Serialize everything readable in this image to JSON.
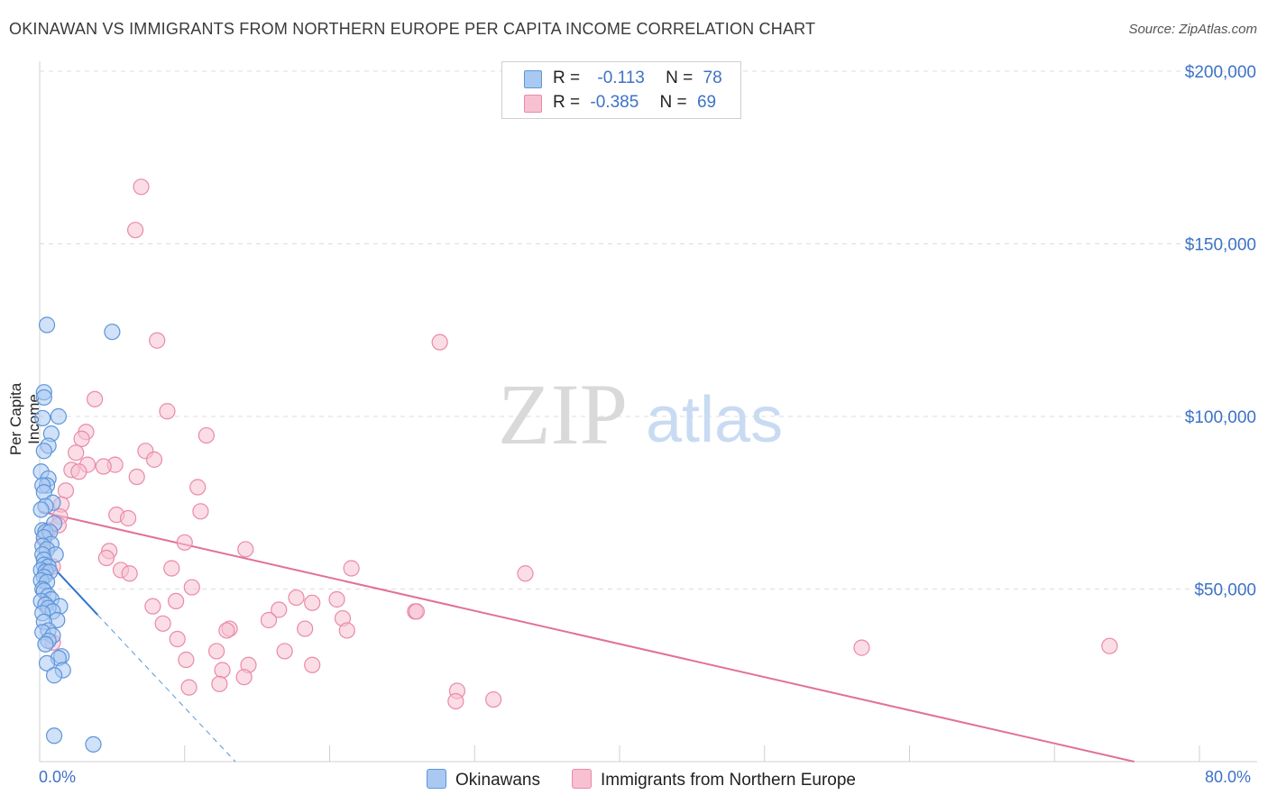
{
  "title": "OKINAWAN VS IMMIGRANTS FROM NORTHERN EUROPE PER CAPITA INCOME CORRELATION CHART",
  "source": "Source: ZipAtlas.com",
  "watermark": {
    "zip": "ZIP",
    "atlas": "atlas"
  },
  "legend": {
    "row1": {
      "r_label": "R =",
      "r_value": "-0.113",
      "n_label": "N =",
      "n_value": "78"
    },
    "row2": {
      "r_label": "R =",
      "r_value": "-0.385",
      "n_label": "N =",
      "n_value": "69"
    }
  },
  "colors": {
    "blue_fill": "#a9c9f2",
    "blue_stroke": "#5d95d8",
    "blue_line": "#2f74d0",
    "pink_fill": "#f7c1d2",
    "pink_stroke": "#e98aa9",
    "pink_line": "#e2709a",
    "tick_text": "#3d72c6",
    "grid": "#dcdcdc"
  },
  "chart_data": {
    "type": "scatter",
    "title": "OKINAWAN VS IMMIGRANTS FROM NORTHERN EUROPE PER CAPITA INCOME CORRELATION CHART",
    "xlabel": "",
    "ylabel": "Per Capita Income",
    "xlim": [
      0,
      80
    ],
    "ylim": [
      0,
      205000
    ],
    "x_tick_labels": [
      "0.0%",
      "80.0%"
    ],
    "y_ticks": [
      50000,
      100000,
      150000,
      200000
    ],
    "y_tick_labels": [
      "$50,000",
      "$100,000",
      "$150,000",
      "$200,000"
    ],
    "series": [
      {
        "name": "Okinawans",
        "color": "blue",
        "trend": {
          "x0": 0,
          "y0": 60500,
          "x1": 4.0,
          "y1": 42500,
          "dash_to_x": 13.5,
          "dash_to_y": 0
        },
        "points": [
          [
            0.5,
            126500
          ],
          [
            5.0,
            124500
          ],
          [
            0.3,
            107000
          ],
          [
            0.3,
            105500
          ],
          [
            1.3,
            100000
          ],
          [
            0.2,
            99500
          ],
          [
            0.8,
            95000
          ],
          [
            0.6,
            91500
          ],
          [
            0.3,
            90000
          ],
          [
            0.1,
            84000
          ],
          [
            0.6,
            82000
          ],
          [
            0.5,
            80000
          ],
          [
            0.2,
            80000
          ],
          [
            0.3,
            78000
          ],
          [
            0.9,
            75000
          ],
          [
            0.4,
            74000
          ],
          [
            0.1,
            73000
          ],
          [
            1.0,
            69000
          ],
          [
            0.2,
            67000
          ],
          [
            0.4,
            66500
          ],
          [
            0.7,
            66500
          ],
          [
            0.3,
            65000
          ],
          [
            0.8,
            63000
          ],
          [
            0.2,
            62500
          ],
          [
            0.5,
            61500
          ],
          [
            1.1,
            60000
          ],
          [
            0.2,
            60000
          ],
          [
            0.3,
            58500
          ],
          [
            0.3,
            57000
          ],
          [
            0.6,
            56500
          ],
          [
            0.1,
            55500
          ],
          [
            0.4,
            55000
          ],
          [
            0.7,
            55000
          ],
          [
            0.3,
            53500
          ],
          [
            0.1,
            52500
          ],
          [
            0.5,
            52000
          ],
          [
            0.2,
            50000
          ],
          [
            0.3,
            49500
          ],
          [
            0.6,
            48000
          ],
          [
            0.8,
            47000
          ],
          [
            0.1,
            46500
          ],
          [
            0.4,
            45500
          ],
          [
            1.4,
            45000
          ],
          [
            0.6,
            44500
          ],
          [
            0.9,
            43500
          ],
          [
            0.2,
            43000
          ],
          [
            1.2,
            41000
          ],
          [
            0.3,
            40500
          ],
          [
            0.6,
            38000
          ],
          [
            0.2,
            37500
          ],
          [
            0.9,
            36500
          ],
          [
            0.6,
            35000
          ],
          [
            0.4,
            34000
          ],
          [
            1.5,
            30500
          ],
          [
            1.3,
            30000
          ],
          [
            0.5,
            28500
          ],
          [
            1.6,
            26500
          ],
          [
            1.0,
            25000
          ],
          [
            1.0,
            7500
          ],
          [
            3.7,
            5000
          ]
        ]
      },
      {
        "name": "Immigrants from Northern Europe",
        "color": "pink",
        "trend": {
          "x0": 0,
          "y0": 72500,
          "x1": 75.5,
          "y1": 0
        },
        "points": [
          [
            7.0,
            166500
          ],
          [
            6.6,
            154000
          ],
          [
            8.1,
            122000
          ],
          [
            27.6,
            121500
          ],
          [
            3.8,
            105000
          ],
          [
            8.8,
            101500
          ],
          [
            11.5,
            94500
          ],
          [
            3.2,
            95500
          ],
          [
            2.9,
            93500
          ],
          [
            7.3,
            90000
          ],
          [
            2.5,
            89500
          ],
          [
            7.9,
            87500
          ],
          [
            3.3,
            86000
          ],
          [
            5.2,
            86000
          ],
          [
            4.4,
            85500
          ],
          [
            2.2,
            84500
          ],
          [
            2.7,
            84000
          ],
          [
            6.7,
            82500
          ],
          [
            10.9,
            79500
          ],
          [
            1.8,
            78500
          ],
          [
            1.5,
            74500
          ],
          [
            11.1,
            72500
          ],
          [
            1.4,
            71000
          ],
          [
            5.3,
            71500
          ],
          [
            6.1,
            70500
          ],
          [
            1.3,
            68500
          ],
          [
            0.6,
            67000
          ],
          [
            0.3,
            64500
          ],
          [
            10.0,
            63500
          ],
          [
            14.2,
            61500
          ],
          [
            4.8,
            61000
          ],
          [
            4.6,
            59000
          ],
          [
            0.9,
            56500
          ],
          [
            21.5,
            56000
          ],
          [
            33.5,
            54500
          ],
          [
            9.1,
            56000
          ],
          [
            5.6,
            55500
          ],
          [
            6.2,
            54500
          ],
          [
            10.5,
            50500
          ],
          [
            17.7,
            47500
          ],
          [
            20.5,
            47000
          ],
          [
            9.4,
            46500
          ],
          [
            18.8,
            46000
          ],
          [
            7.8,
            45000
          ],
          [
            16.5,
            44000
          ],
          [
            25.9,
            43500
          ],
          [
            26.0,
            43500
          ],
          [
            20.9,
            41500
          ],
          [
            15.8,
            41000
          ],
          [
            8.5,
            40000
          ],
          [
            13.1,
            38500
          ],
          [
            12.9,
            38000
          ],
          [
            18.3,
            38500
          ],
          [
            21.2,
            38000
          ],
          [
            9.5,
            35500
          ],
          [
            0.9,
            34500
          ],
          [
            56.7,
            33000
          ],
          [
            73.8,
            33500
          ],
          [
            12.2,
            32000
          ],
          [
            16.9,
            32000
          ],
          [
            10.1,
            29500
          ],
          [
            14.4,
            28000
          ],
          [
            18.8,
            28000
          ],
          [
            12.6,
            26500
          ],
          [
            14.1,
            24500
          ],
          [
            12.4,
            22500
          ],
          [
            10.3,
            21500
          ],
          [
            28.8,
            20500
          ],
          [
            28.7,
            17500
          ],
          [
            31.3,
            18000
          ]
        ]
      }
    ]
  },
  "bottom_legend": {
    "blue_label": "Okinawans",
    "pink_label": "Immigrants from Northern Europe"
  }
}
